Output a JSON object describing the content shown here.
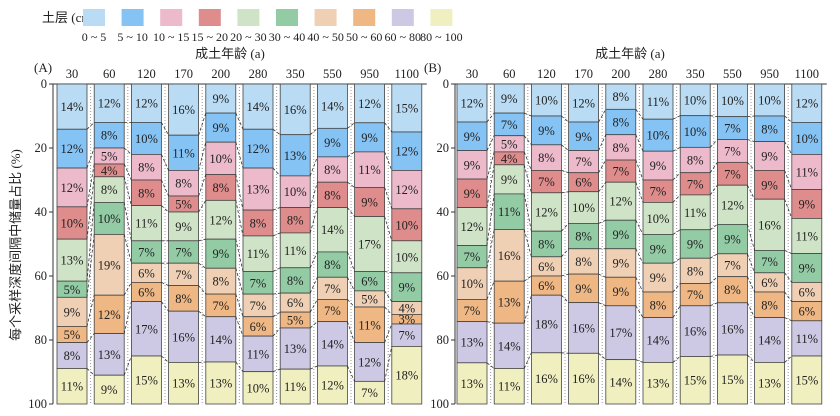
{
  "chart_data": {
    "type": "bar",
    "stacked": true,
    "legend": {
      "title": "土层 (cm)",
      "placement": "top",
      "entries": [
        "0 ~ 5",
        "5 ~ 10",
        "10 ~ 15",
        "15 ~ 20",
        "20 ~ 30",
        "30 ~ 40",
        "40 ~ 50",
        "50 ~ 60",
        "60 ~ 80",
        "80 ~ 100"
      ],
      "colors": [
        "#b9dcf4",
        "#86c3f5",
        "#ecbacb",
        "#de8c8c",
        "#cfe3c7",
        "#93cba5",
        "#efd0b5",
        "#eeb784",
        "#cdc8e3",
        "#f0efbf"
      ]
    },
    "ylabel": "每个采样深度间隔中储量占比 (%)",
    "ylim": [
      0,
      100
    ],
    "yticks": [
      "0",
      "20",
      "40",
      "60",
      "80",
      "100"
    ],
    "panels": [
      {
        "label": "(A)",
        "xlabel": "成土年龄 (a)",
        "categories": [
          "30",
          "60",
          "120",
          "170",
          "200",
          "280",
          "350",
          "550",
          "950",
          "1100"
        ],
        "values": [
          [
            14,
            12,
            12,
            10,
            13,
            5,
            9,
            5,
            8,
            11
          ],
          [
            12,
            8,
            5,
            4,
            8,
            10,
            19,
            12,
            13,
            9
          ],
          [
            12,
            10,
            8,
            8,
            11,
            7,
            6,
            6,
            17,
            15
          ],
          [
            16,
            11,
            8,
            5,
            9,
            7,
            7,
            8,
            16,
            13
          ],
          [
            9,
            9,
            10,
            8,
            12,
            9,
            8,
            7,
            14,
            13
          ],
          [
            14,
            12,
            13,
            8,
            11,
            7,
            7,
            6,
            11,
            10
          ],
          [
            16,
            13,
            10,
            8,
            11,
            8,
            6,
            5,
            13,
            11
          ],
          [
            14,
            9,
            8,
            8,
            14,
            8,
            7,
            7,
            14,
            12
          ],
          [
            12,
            9,
            11,
            9,
            17,
            6,
            5,
            11,
            12,
            7
          ],
          [
            15,
            12,
            12,
            10,
            10,
            9,
            4,
            3,
            7,
            18
          ]
        ]
      },
      {
        "label": "(B)",
        "xlabel": "成土年龄 (a)",
        "categories": [
          "30",
          "60",
          "120",
          "170",
          "200",
          "280",
          "350",
          "550",
          "950",
          "1100"
        ],
        "values": [
          [
            12,
            9,
            9,
            9,
            12,
            7,
            10,
            7,
            13,
            13
          ],
          [
            9,
            7,
            5,
            4,
            9,
            11,
            16,
            13,
            14,
            11
          ],
          [
            10,
            9,
            8,
            7,
            12,
            8,
            6,
            6,
            18,
            16
          ],
          [
            12,
            9,
            7,
            6,
            10,
            8,
            8,
            9,
            16,
            16
          ],
          [
            8,
            8,
            8,
            7,
            12,
            9,
            9,
            9,
            17,
            14
          ],
          [
            11,
            10,
            9,
            7,
            10,
            9,
            9,
            8,
            14,
            13
          ],
          [
            10,
            10,
            8,
            7,
            11,
            9,
            8,
            7,
            16,
            15
          ],
          [
            10,
            7,
            7,
            7,
            12,
            9,
            7,
            8,
            16,
            15
          ],
          [
            10,
            8,
            9,
            9,
            16,
            7,
            6,
            8,
            14,
            13
          ],
          [
            12,
            10,
            11,
            9,
            11,
            9,
            6,
            6,
            11,
            15
          ]
        ]
      }
    ]
  }
}
